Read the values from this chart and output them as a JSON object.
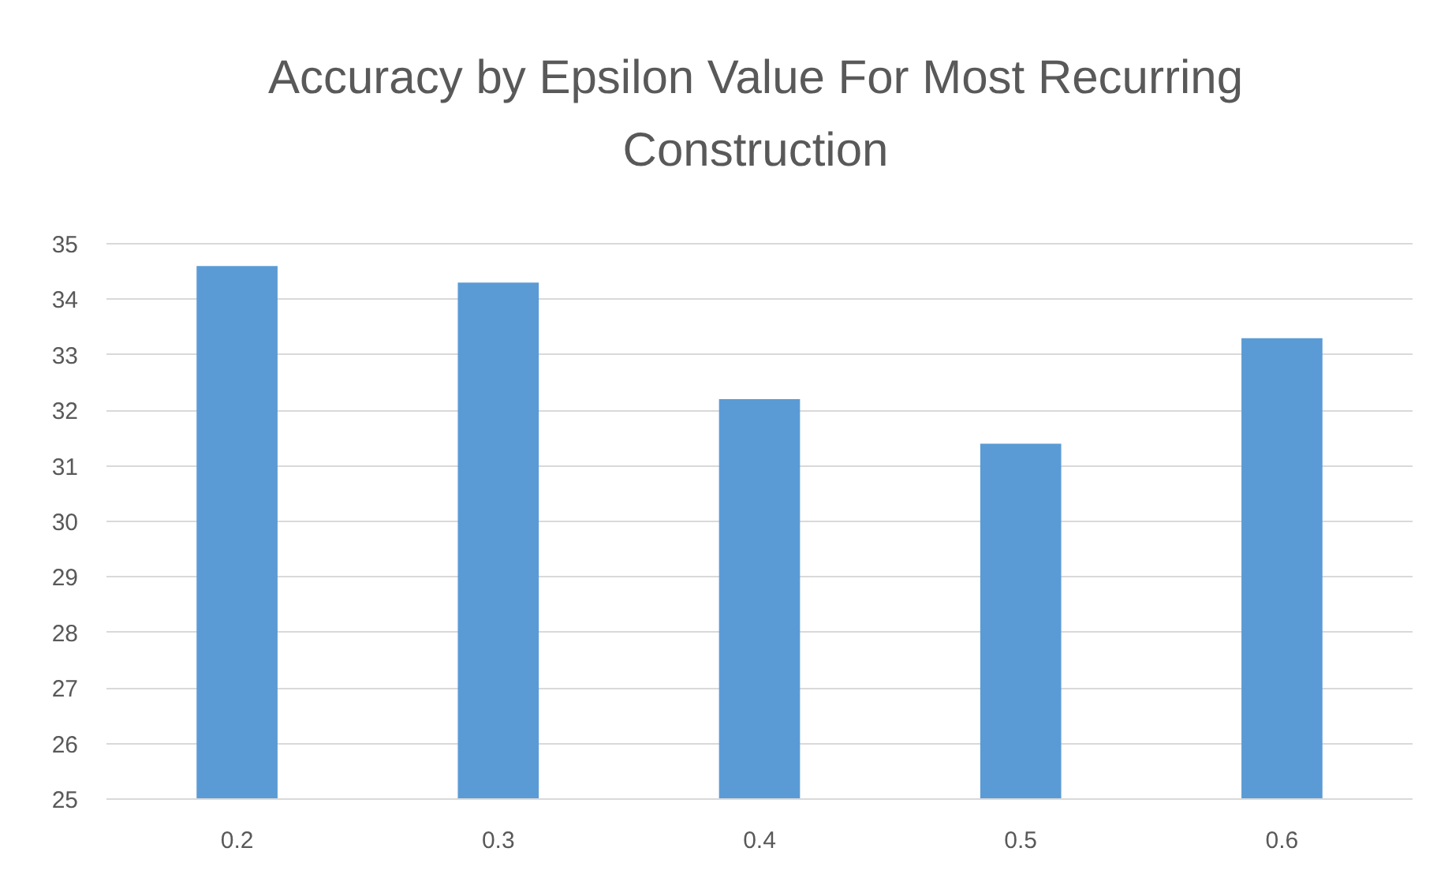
{
  "chart_data": {
    "type": "bar",
    "title": "Accuracy by Epsilon Value For Most Recurring Construction",
    "categories": [
      "0.2",
      "0.3",
      "0.4",
      "0.5",
      "0.6"
    ],
    "values": [
      34.6,
      34.3,
      32.2,
      31.4,
      33.3
    ],
    "color": "#5b9bd5",
    "ylim": [
      25,
      35
    ],
    "yticks": [
      25,
      26,
      27,
      28,
      29,
      30,
      31,
      32,
      33,
      34,
      35
    ],
    "grid": "y"
  }
}
